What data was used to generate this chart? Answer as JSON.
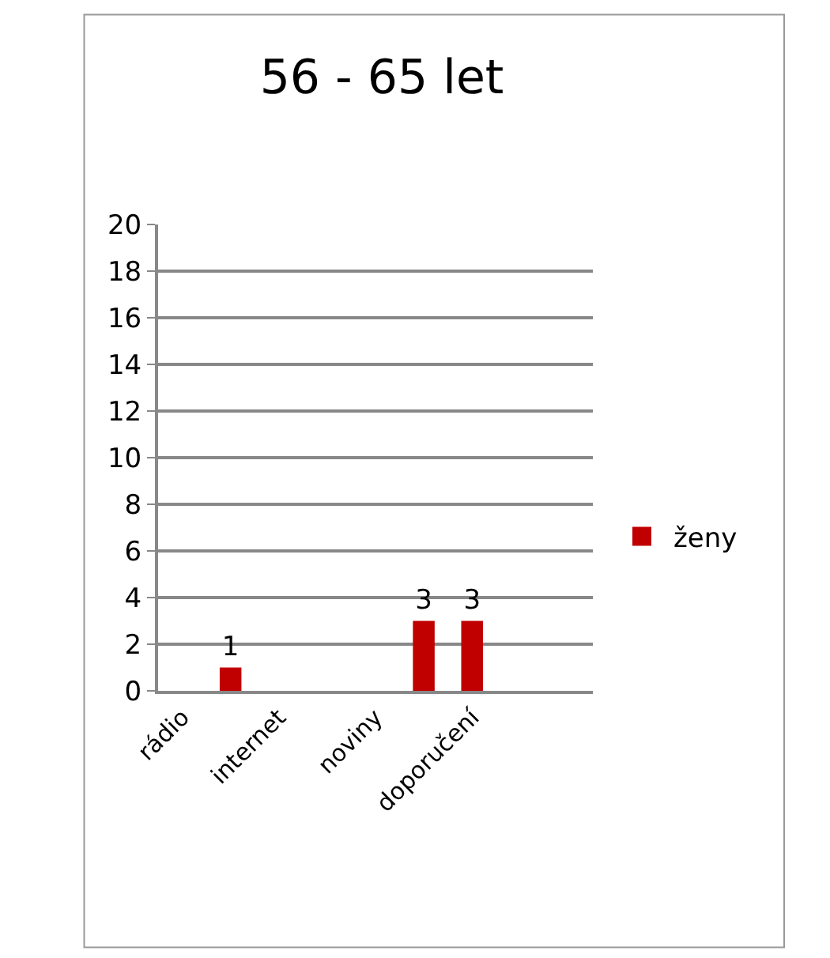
{
  "chart_data": {
    "type": "bar",
    "title": "56 - 65 let",
    "categories": [
      "rádio",
      null,
      "internet",
      null,
      "noviny",
      null,
      "doporučení",
      null,
      null
    ],
    "series": [
      {
        "name": "ženy",
        "color": "#c00000",
        "values": [
          null,
          1,
          null,
          null,
          null,
          3,
          3,
          null,
          null
        ]
      }
    ],
    "ylim": [
      0,
      20
    ],
    "yticks": [
      0,
      2,
      4,
      6,
      8,
      10,
      12,
      14,
      16,
      18,
      20
    ],
    "grid": "y",
    "legend": "right",
    "data_labels": true
  }
}
